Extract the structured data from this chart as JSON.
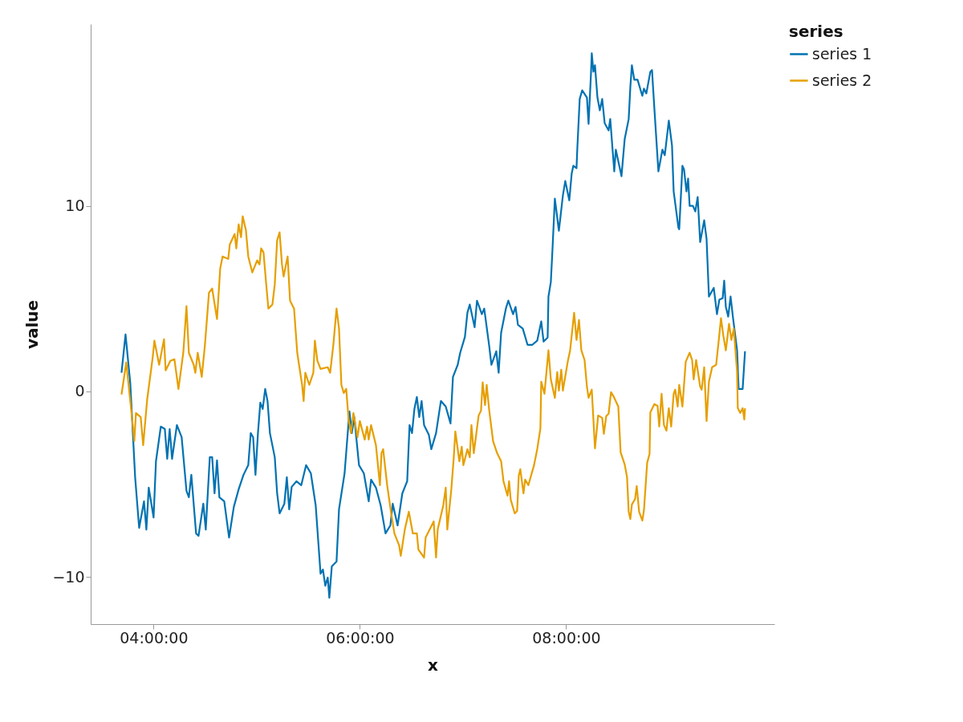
{
  "chart_data": {
    "type": "line",
    "xlabel": "x",
    "ylabel": "value",
    "legend_title": "series",
    "legend": "right",
    "grid": false,
    "xlim": [
      3.39,
      10.02
    ],
    "xticks": [
      {
        "value": 4,
        "label": "04:00:00"
      },
      {
        "value": 6,
        "label": "06:00:00"
      },
      {
        "value": 8,
        "label": "08:00:00"
      }
    ],
    "ylim": [
      -12.55,
      19.8
    ],
    "yticks": [
      -10,
      0,
      10
    ],
    "series": [
      {
        "name": "series 1",
        "color": "#0072b2",
        "x": [
          3.689,
          3.728,
          3.774,
          3.821,
          3.86,
          3.907,
          3.93,
          3.953,
          4.0,
          4.023,
          4.07,
          4.109,
          4.132,
          4.156,
          4.179,
          4.226,
          4.272,
          4.319,
          4.342,
          4.366,
          4.412,
          4.436,
          4.482,
          4.506,
          4.545,
          4.568,
          4.591,
          4.615,
          4.638,
          4.685,
          4.732,
          4.778,
          4.825,
          4.872,
          4.918,
          4.942,
          4.965,
          4.988,
          5.012,
          5.035,
          5.058,
          5.082,
          5.105,
          5.128,
          5.175,
          5.198,
          5.222,
          5.268,
          5.292,
          5.315,
          5.339,
          5.385,
          5.432,
          5.479,
          5.525,
          5.572,
          5.619,
          5.642,
          5.665,
          5.689,
          5.704,
          5.728,
          5.774,
          5.798,
          5.852,
          5.899,
          5.922,
          5.946,
          5.992,
          6.039,
          6.086,
          6.109,
          6.156,
          6.202,
          6.249,
          6.296,
          6.319,
          6.366,
          6.412,
          6.459,
          6.482,
          6.506,
          6.529,
          6.553,
          6.576,
          6.599,
          6.623,
          6.669,
          6.693,
          6.739,
          6.786,
          6.833,
          6.879,
          6.903,
          6.949,
          6.973,
          7.019,
          7.043,
          7.066,
          7.113,
          7.136,
          7.183,
          7.206,
          7.253,
          7.276,
          7.323,
          7.346,
          7.37,
          7.416,
          7.44,
          7.486,
          7.51,
          7.533,
          7.58,
          7.626,
          7.673,
          7.72,
          7.759,
          7.782,
          7.821,
          7.829,
          7.852,
          7.868,
          7.891,
          7.93,
          7.969,
          7.992,
          8.031,
          8.054,
          8.07,
          8.101,
          8.109,
          8.132,
          8.156,
          8.202,
          8.218,
          8.241,
          8.249,
          8.265,
          8.28,
          8.304,
          8.327,
          8.35,
          8.374,
          8.412,
          8.428,
          8.467,
          8.482,
          8.537,
          8.568,
          8.607,
          8.623,
          8.638,
          8.661,
          8.693,
          8.739,
          8.755,
          8.778,
          8.817,
          8.833,
          8.856,
          8.895,
          8.934,
          8.957,
          8.996,
          9.027,
          9.043,
          9.089,
          9.097,
          9.128,
          9.144,
          9.167,
          9.183,
          9.198,
          9.23,
          9.253,
          9.276,
          9.3,
          9.339,
          9.362,
          9.385,
          9.432,
          9.463,
          9.486,
          9.518,
          9.533,
          9.549,
          9.572,
          9.595,
          9.619,
          9.658,
          9.673,
          9.712,
          9.735
        ],
        "values": [
          1.0,
          3.07,
          0.43,
          -4.63,
          -7.36,
          -5.93,
          -7.45,
          -5.19,
          -6.8,
          -3.77,
          -1.9,
          -2.03,
          -3.64,
          -2.03,
          -3.64,
          -1.82,
          -2.47,
          -5.37,
          -5.71,
          -4.5,
          -7.66,
          -7.79,
          -6.06,
          -7.45,
          -3.55,
          -3.55,
          -5.5,
          -3.72,
          -5.71,
          -5.93,
          -7.88,
          -6.23,
          -5.28,
          -4.5,
          -3.98,
          -2.25,
          -2.47,
          -4.5,
          -2.25,
          -0.61,
          -0.95,
          0.13,
          -0.52,
          -2.25,
          -3.55,
          -5.5,
          -6.58,
          -6.06,
          -4.63,
          -6.36,
          -5.15,
          -4.85,
          -5.06,
          -3.98,
          -4.42,
          -6.15,
          -9.83,
          -9.61,
          -10.48,
          -10.04,
          -11.13,
          -9.44,
          -9.18,
          -6.36,
          -4.42,
          -1.08,
          -2.25,
          -1.39,
          -3.98,
          -4.42,
          -5.93,
          -4.76,
          -5.19,
          -6.15,
          -7.66,
          -7.23,
          -6.06,
          -7.23,
          -5.5,
          -4.85,
          -1.82,
          -2.25,
          -0.95,
          -0.3,
          -1.39,
          -0.52,
          -1.82,
          -2.34,
          -3.12,
          -2.25,
          -0.52,
          -0.82,
          -1.73,
          0.78,
          1.43,
          2.08,
          2.94,
          4.24,
          4.68,
          3.46,
          4.89,
          4.16,
          4.46,
          2.51,
          1.43,
          2.16,
          1.0,
          3.16,
          4.46,
          4.89,
          4.16,
          4.55,
          3.59,
          3.38,
          2.51,
          2.51,
          2.73,
          3.77,
          2.68,
          2.9,
          5.11,
          5.89,
          7.66,
          10.39,
          8.66,
          10.56,
          11.34,
          10.3,
          11.73,
          12.16,
          12.03,
          13.12,
          15.76,
          16.23,
          15.84,
          14.42,
          17.1,
          18.23,
          17.23,
          17.58,
          15.84,
          15.15,
          15.76,
          14.46,
          14.07,
          14.68,
          11.86,
          13.03,
          11.6,
          13.59,
          14.68,
          16.41,
          17.58,
          16.8,
          16.8,
          15.93,
          16.32,
          16.06,
          17.23,
          17.32,
          15.24,
          11.86,
          13.03,
          12.73,
          14.59,
          13.25,
          10.78,
          8.83,
          8.74,
          12.16,
          11.95,
          10.78,
          11.47,
          10.0,
          10.0,
          9.7,
          10.48,
          8.05,
          9.22,
          8.23,
          5.11,
          5.58,
          4.16,
          4.94,
          5.02,
          5.97,
          4.55,
          4.03,
          5.11,
          3.94,
          2.21,
          0.13,
          0.13,
          2.16
        ]
      },
      {
        "name": "series 2",
        "color": "#e69f00",
        "x": [
          3.689,
          3.735,
          3.782,
          3.813,
          3.829,
          3.875,
          3.899,
          3.938,
          3.992,
          4.008,
          4.054,
          4.101,
          4.117,
          4.163,
          4.202,
          4.241,
          4.288,
          4.319,
          4.342,
          4.389,
          4.405,
          4.428,
          4.467,
          4.498,
          4.537,
          4.568,
          4.615,
          4.646,
          4.669,
          4.724,
          4.739,
          4.786,
          4.802,
          4.825,
          4.848,
          4.864,
          4.895,
          4.918,
          4.957,
          5.004,
          5.027,
          5.043,
          5.066,
          5.089,
          5.113,
          5.152,
          5.175,
          5.198,
          5.222,
          5.245,
          5.261,
          5.284,
          5.3,
          5.323,
          5.362,
          5.393,
          5.44,
          5.455,
          5.471,
          5.51,
          5.549,
          5.564,
          5.588,
          5.619,
          5.689,
          5.712,
          5.743,
          5.774,
          5.798,
          5.821,
          5.844,
          5.868,
          5.891,
          5.914,
          5.938,
          5.977,
          6.0,
          6.047,
          6.07,
          6.086,
          6.109,
          6.156,
          6.195,
          6.21,
          6.226,
          6.265,
          6.304,
          6.335,
          6.381,
          6.397,
          6.436,
          6.475,
          6.514,
          6.553,
          6.568,
          6.623,
          6.638,
          6.685,
          6.716,
          6.739,
          6.755,
          6.809,
          6.833,
          6.848,
          6.887,
          6.911,
          6.926,
          6.965,
          6.988,
          7.004,
          7.043,
          7.066,
          7.082,
          7.105,
          7.152,
          7.175,
          7.191,
          7.214,
          7.23,
          7.253,
          7.292,
          7.331,
          7.37,
          7.393,
          7.432,
          7.447,
          7.463,
          7.502,
          7.525,
          7.541,
          7.556,
          7.587,
          7.603,
          7.634,
          7.689,
          7.72,
          7.751,
          7.759,
          7.79,
          7.829,
          7.852,
          7.891,
          7.914,
          7.93,
          7.953,
          7.969,
          8.016,
          8.039,
          8.078,
          8.101,
          8.125,
          8.148,
          8.179,
          8.202,
          8.218,
          8.249,
          8.28,
          8.311,
          8.35,
          8.366,
          8.389,
          8.412,
          8.436,
          8.459,
          8.506,
          8.529,
          8.568,
          8.591,
          8.607,
          8.623,
          8.638,
          8.669,
          8.685,
          8.708,
          8.739,
          8.755,
          8.786,
          8.809,
          8.817,
          8.856,
          8.887,
          8.903,
          8.926,
          8.949,
          8.973,
          8.996,
          9.019,
          9.043,
          9.058,
          9.082,
          9.097,
          9.128,
          9.16,
          9.198,
          9.222,
          9.237,
          9.261,
          9.3,
          9.315,
          9.339,
          9.362,
          9.385,
          9.416,
          9.455,
          9.479,
          9.502,
          9.525,
          9.549,
          9.58,
          9.603,
          9.626,
          9.658,
          9.665,
          9.689,
          9.712,
          9.728,
          9.735
        ],
        "values": [
          -0.17,
          1.56,
          -0.95,
          -2.68,
          -1.17,
          -1.39,
          -2.9,
          -0.43,
          1.86,
          2.73,
          1.43,
          2.81,
          1.13,
          1.65,
          1.73,
          0.13,
          2.08,
          4.59,
          2.08,
          1.43,
          1.0,
          2.08,
          0.78,
          2.51,
          5.32,
          5.54,
          3.9,
          6.62,
          7.27,
          7.14,
          7.92,
          8.48,
          7.71,
          9.0,
          8.31,
          9.44,
          8.7,
          7.27,
          6.41,
          7.06,
          6.84,
          7.71,
          7.49,
          5.97,
          4.46,
          4.68,
          5.76,
          8.14,
          8.57,
          6.84,
          6.19,
          6.84,
          7.27,
          4.89,
          4.46,
          2.08,
          0.35,
          -0.52,
          1.0,
          0.35,
          1.0,
          2.73,
          1.65,
          1.21,
          1.3,
          1.0,
          2.51,
          4.46,
          3.38,
          0.35,
          -0.09,
          0.13,
          -1.52,
          -2.25,
          -1.17,
          -2.47,
          -1.6,
          -2.6,
          -1.9,
          -2.6,
          -1.82,
          -2.9,
          -5.06,
          -3.33,
          -3.12,
          -5.06,
          -6.58,
          -7.66,
          -8.31,
          -8.87,
          -7.45,
          -6.49,
          -7.66,
          -7.66,
          -8.53,
          -8.96,
          -7.88,
          -7.36,
          -7.01,
          -8.96,
          -7.45,
          -6.15,
          -5.19,
          -7.45,
          -5.28,
          -3.55,
          -2.16,
          -3.77,
          -2.99,
          -3.98,
          -3.12,
          -3.55,
          -1.82,
          -3.33,
          -1.3,
          -1.04,
          0.48,
          -0.74,
          0.35,
          -0.95,
          -2.68,
          -3.33,
          -3.77,
          -4.85,
          -5.63,
          -4.85,
          -5.84,
          -6.58,
          -6.45,
          -4.55,
          -4.2,
          -5.5,
          -4.76,
          -5.06,
          -3.98,
          -3.12,
          -1.99,
          0.52,
          -0.13,
          2.21,
          0.65,
          -0.35,
          1.04,
          0.04,
          1.17,
          0.04,
          1.6,
          2.21,
          4.24,
          2.77,
          3.85,
          2.21,
          1.69,
          0.26,
          -0.35,
          0.09,
          -3.07,
          -1.3,
          -1.43,
          -2.29,
          -1.34,
          -1.21,
          -0.04,
          -0.26,
          -0.82,
          -3.29,
          -3.94,
          -4.63,
          -6.49,
          -6.88,
          -6.1,
          -5.8,
          -5.11,
          -6.49,
          -6.97,
          -6.41,
          -3.85,
          -3.38,
          -1.13,
          -0.69,
          -0.78,
          -1.9,
          -0.13,
          -1.82,
          -2.12,
          -0.91,
          -1.9,
          -0.13,
          0.09,
          -0.82,
          0.35,
          -0.82,
          1.6,
          2.08,
          1.69,
          0.65,
          1.69,
          0.26,
          0.09,
          1.3,
          -1.6,
          0.52,
          1.3,
          1.43,
          2.68,
          3.94,
          2.99,
          2.21,
          3.64,
          2.77,
          3.38,
          1.04,
          -0.91,
          -1.17,
          -0.91,
          -1.52,
          -0.91
        ]
      }
    ]
  }
}
